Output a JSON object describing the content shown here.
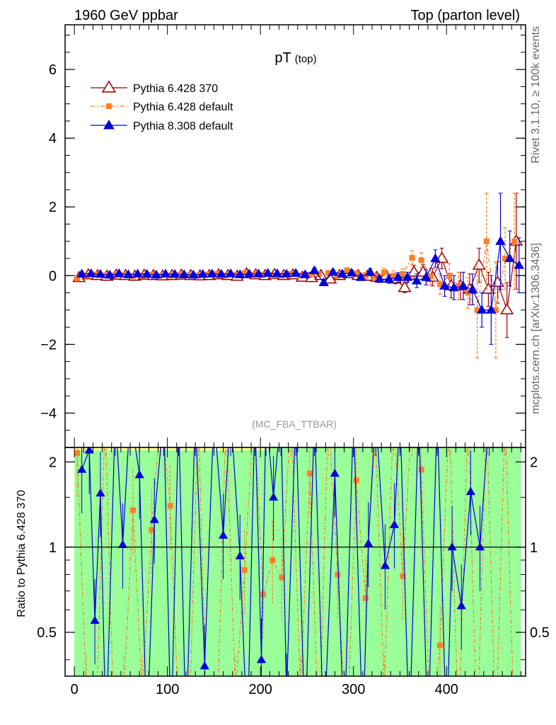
{
  "header": {
    "left": "1960 GeV ppbar",
    "right": "Top (parton level)"
  },
  "side_labels": {
    "rivet": "Rivet 3.1.10, ≥ 100k events",
    "mcplots": "mcplots.cern.ch [arXiv:1306.3436]"
  },
  "plot_title": {
    "main": "pT",
    "sub": "(top)"
  },
  "analysis_tag": "(MC_FBA_TTBAR)",
  "colors": {
    "series1": "#990000",
    "series2": "#ff7f24",
    "series3": "#0000dd",
    "band_inner": "#99ff99",
    "band_outer": "#ffff99"
  },
  "chart_data": [
    {
      "type": "line",
      "title": "pT (top)",
      "xlim": [
        -10,
        485
      ],
      "ylim": [
        -5,
        7.3
      ],
      "yticks": [
        -4,
        -2,
        0,
        2,
        4,
        6
      ],
      "yticklabels": [
        "−4",
        "−2",
        "0",
        "2",
        "4",
        "6"
      ],
      "legend_position": "top-left",
      "series": [
        {
          "name": "Pythia 6.428 370",
          "marker": "open-triangle",
          "x": [
            5,
            15,
            25,
            35,
            45,
            55,
            65,
            75,
            85,
            95,
            105,
            115,
            125,
            135,
            145,
            155,
            165,
            175,
            185,
            195,
            205,
            215,
            225,
            235,
            245,
            255,
            265,
            275,
            285,
            295,
            305,
            315,
            325,
            335,
            345,
            355,
            365,
            375,
            385,
            395,
            405,
            415,
            425,
            435,
            445,
            455,
            465,
            475
          ],
          "y": [
            -0.06,
            0.02,
            0.0,
            -0.02,
            0.01,
            0.0,
            -0.02,
            0.01,
            0.0,
            -0.01,
            0.0,
            0.01,
            0.0,
            -0.01,
            0.0,
            0.02,
            0.0,
            -0.02,
            0.05,
            0.02,
            0.0,
            0.03,
            0.0,
            0.02,
            -0.05,
            -0.06,
            0.0,
            -0.1,
            0.0,
            0.05,
            0.0,
            -0.02,
            -0.05,
            0.0,
            -0.1,
            -0.35,
            0.1,
            0.1,
            -0.05,
            0.5,
            -0.3,
            -0.3,
            -0.4,
            0.3,
            -0.4,
            -0.2,
            -1.0,
            1.0
          ],
          "err": [
            0.05,
            0.04,
            0.04,
            0.04,
            0.04,
            0.04,
            0.04,
            0.04,
            0.04,
            0.04,
            0.04,
            0.04,
            0.04,
            0.05,
            0.05,
            0.05,
            0.05,
            0.05,
            0.05,
            0.05,
            0.05,
            0.06,
            0.06,
            0.06,
            0.06,
            0.07,
            0.07,
            0.07,
            0.08,
            0.08,
            0.09,
            0.1,
            0.1,
            0.12,
            0.14,
            0.15,
            0.2,
            0.22,
            0.25,
            0.3,
            0.35,
            0.4,
            0.45,
            0.5,
            0.5,
            0.6,
            0.8,
            1.4
          ]
        },
        {
          "name": "Pythia 6.428 default",
          "marker": "filled-square",
          "x": [
            3,
            13,
            23,
            33,
            43,
            53,
            63,
            73,
            83,
            93,
            103,
            113,
            123,
            133,
            143,
            153,
            163,
            173,
            183,
            193,
            203,
            213,
            223,
            233,
            243,
            253,
            263,
            273,
            283,
            293,
            303,
            313,
            323,
            333,
            343,
            353,
            363,
            373,
            383,
            393,
            403,
            413,
            423,
            433,
            443,
            453,
            463,
            473
          ],
          "y": [
            -0.08,
            0.0,
            0.03,
            0.0,
            0.01,
            0.02,
            -0.02,
            0.0,
            0.03,
            0.0,
            0.0,
            0.02,
            0.01,
            0.0,
            0.03,
            0.05,
            0.0,
            0.02,
            0.08,
            0.03,
            0.02,
            0.0,
            0.0,
            0.05,
            0.0,
            0.02,
            0.04,
            0.08,
            0.0,
            0.15,
            0.05,
            0.0,
            -0.03,
            0.1,
            0.0,
            0.05,
            0.52,
            0.45,
            -0.02,
            -0.25,
            0.0,
            -0.3,
            -0.5,
            -1.0,
            1.0,
            -1.0,
            0.5,
            1.0
          ],
          "err": [
            0.05,
            0.04,
            0.04,
            0.04,
            0.04,
            0.04,
            0.04,
            0.04,
            0.04,
            0.04,
            0.04,
            0.04,
            0.04,
            0.05,
            0.05,
            0.05,
            0.05,
            0.05,
            0.05,
            0.05,
            0.05,
            0.06,
            0.06,
            0.06,
            0.06,
            0.07,
            0.07,
            0.07,
            0.08,
            0.08,
            0.09,
            0.1,
            0.1,
            0.12,
            0.14,
            0.15,
            0.2,
            0.22,
            0.25,
            0.3,
            0.35,
            0.4,
            0.45,
            1.4,
            1.4,
            1.4,
            0.9,
            1.4
          ]
        },
        {
          "name": "Pythia 8.308 default",
          "marker": "filled-triangle",
          "x": [
            8,
            18,
            28,
            38,
            48,
            58,
            68,
            78,
            88,
            98,
            108,
            118,
            128,
            138,
            148,
            158,
            168,
            178,
            188,
            198,
            208,
            218,
            228,
            238,
            248,
            258,
            268,
            278,
            288,
            298,
            308,
            318,
            328,
            338,
            348,
            358,
            368,
            378,
            388,
            398,
            408,
            418,
            428,
            438,
            448,
            458,
            468,
            478
          ],
          "y": [
            0.05,
            0.06,
            0.04,
            0.02,
            0.06,
            0.03,
            0.05,
            0.04,
            0.02,
            0.05,
            0.04,
            0.03,
            0.02,
            0.04,
            0.05,
            0.04,
            0.06,
            0.03,
            0.05,
            0.05,
            0.07,
            0.06,
            0.05,
            0.07,
            0.03,
            0.15,
            -0.2,
            0.1,
            0.05,
            0.08,
            -0.05,
            0.1,
            -0.1,
            -0.1,
            -0.05,
            -0.05,
            -0.15,
            -0.05,
            0.5,
            -0.3,
            -0.35,
            -0.3,
            -0.4,
            -1.0,
            -1.0,
            1.0,
            0.5,
            0.3
          ],
          "err": [
            0.05,
            0.04,
            0.04,
            0.04,
            0.04,
            0.04,
            0.04,
            0.04,
            0.04,
            0.04,
            0.04,
            0.04,
            0.04,
            0.05,
            0.05,
            0.05,
            0.05,
            0.05,
            0.05,
            0.05,
            0.05,
            0.06,
            0.06,
            0.06,
            0.06,
            0.07,
            0.07,
            0.07,
            0.08,
            0.08,
            0.09,
            0.1,
            0.1,
            0.12,
            0.14,
            0.15,
            0.2,
            0.22,
            0.25,
            0.3,
            0.35,
            0.4,
            0.45,
            0.5,
            1.0,
            1.4,
            0.8,
            0.8
          ]
        }
      ]
    },
    {
      "type": "line",
      "ylabel": "Ratio to Pythia 6.428 370",
      "xlim": [
        -10,
        485
      ],
      "ylim": [
        0.35,
        2.25
      ],
      "yticks": [
        0.5,
        1,
        2
      ],
      "yticklabels": [
        "0.5",
        "1",
        "2"
      ],
      "xticks": [
        0,
        100,
        200,
        300,
        400
      ],
      "xticklabels": [
        "0",
        "100",
        "200",
        "300",
        "400"
      ],
      "reference_line": 1,
      "series": [
        {
          "name": "Pythia 6.428 default",
          "marker": "filled-square",
          "x": [
            3,
            13,
            23,
            33,
            43,
            53,
            63,
            73,
            83,
            93,
            103,
            113,
            123,
            133,
            143,
            153,
            163,
            173,
            183,
            193,
            203,
            213,
            223,
            233,
            243,
            253,
            263,
            273,
            283,
            293,
            303,
            313,
            323,
            333,
            343,
            353,
            363,
            373,
            383,
            393,
            403,
            413,
            423,
            433,
            443,
            453,
            463,
            473
          ],
          "y": [
            2.15,
            0.3,
            0.2,
            3.0,
            0.1,
            0.3,
            1.35,
            0.3,
            1.15,
            3.0,
            1.4,
            0.2,
            0.2,
            3.0,
            0.1,
            0.2,
            3.0,
            0.3,
            0.83,
            3.0,
            0.68,
            0.9,
            0.78,
            3.0,
            0.3,
            1.82,
            0.2,
            3.0,
            0.8,
            0.2,
            1.72,
            0.66,
            3.0,
            0.3,
            3.0,
            0.79,
            3.0,
            1.88,
            0.2,
            0.45,
            3.0,
            0.2,
            3.0,
            0.2,
            3.0,
            0.2,
            3.0,
            0.2
          ]
        },
        {
          "name": "Pythia 8.308 default",
          "marker": "filled-triangle",
          "x": [
            8,
            16,
            22,
            28,
            34,
            44,
            52,
            60,
            70,
            78,
            86,
            96,
            104,
            112,
            120,
            130,
            140,
            150,
            160,
            168,
            178,
            186,
            194,
            201,
            206,
            214,
            222,
            228,
            238,
            248,
            258,
            268,
            280,
            290,
            300,
            310,
            316,
            324,
            334,
            344,
            350,
            360,
            370,
            380,
            390,
            400,
            406,
            416,
            426,
            436,
            446
          ],
          "y": [
            1.88,
            2.2,
            0.55,
            1.55,
            0.2,
            3.0,
            1.02,
            3.0,
            1.8,
            0.2,
            1.25,
            3.0,
            0.2,
            3.0,
            0.2,
            3.0,
            0.38,
            3.0,
            1.1,
            3.0,
            0.93,
            0.2,
            3.0,
            0.4,
            3.0,
            1.5,
            3.0,
            0.3,
            3.0,
            0.2,
            3.0,
            0.2,
            1.82,
            0.2,
            3.0,
            0.2,
            1.03,
            3.0,
            0.86,
            1.2,
            3.0,
            0.2,
            3.0,
            0.2,
            3.0,
            0.2,
            1.0,
            0.62,
            1.57,
            1.0,
            3.0
          ]
        }
      ]
    }
  ]
}
